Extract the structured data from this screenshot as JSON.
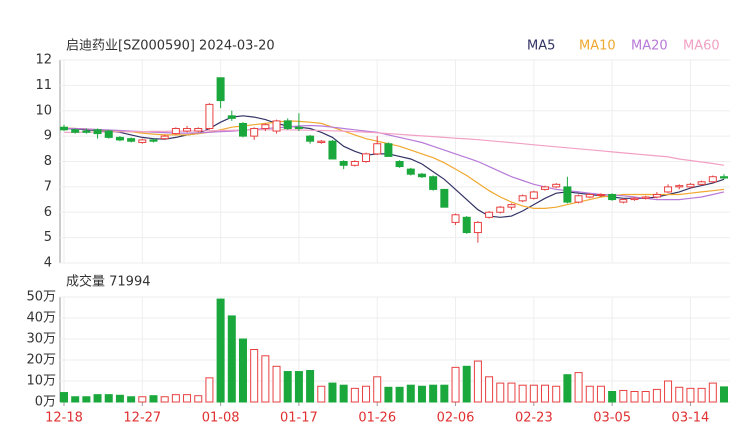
{
  "chart_data": {
    "type": "candlestick",
    "title": "启迪药业[SZ000590] 2024-03-20",
    "volume_title": "成交量 71994",
    "categories": [
      "12-18",
      null,
      null,
      null,
      null,
      null,
      null,
      "12-27",
      null,
      null,
      null,
      null,
      null,
      null,
      "01-08",
      null,
      null,
      null,
      null,
      null,
      null,
      "01-17",
      null,
      null,
      null,
      null,
      null,
      null,
      "01-26",
      null,
      null,
      null,
      null,
      null,
      null,
      "02-06",
      null,
      null,
      null,
      null,
      null,
      null,
      "02-23",
      null,
      null,
      null,
      null,
      null,
      null,
      "03-05",
      null,
      null,
      null,
      null,
      null,
      null,
      "03-14",
      null,
      null,
      null
    ],
    "open": [
      9.35,
      9.25,
      9.2,
      9.25,
      9.2,
      8.95,
      8.9,
      8.75,
      8.85,
      8.9,
      9.1,
      9.2,
      9.2,
      9.3,
      11.3,
      9.8,
      9.5,
      9.0,
      9.3,
      9.2,
      9.6,
      9.35,
      9.0,
      8.75,
      8.8,
      8.0,
      7.85,
      8.0,
      8.3,
      8.7,
      8.0,
      7.7,
      7.5,
      7.4,
      6.9,
      5.6,
      5.8,
      5.2,
      5.8,
      6.0,
      6.2,
      6.45,
      6.55,
      6.9,
      7.0,
      7.0,
      6.4,
      6.6,
      6.7,
      6.7,
      6.4,
      6.5,
      6.55,
      6.6,
      6.8,
      7.0,
      7.0,
      7.1,
      7.2,
      7.4
    ],
    "high": [
      9.45,
      9.3,
      9.3,
      9.3,
      9.25,
      9.0,
      8.95,
      8.9,
      8.9,
      9.05,
      9.35,
      9.4,
      9.35,
      10.3,
      11.3,
      10.0,
      9.55,
      9.35,
      9.5,
      9.65,
      9.7,
      9.9,
      9.05,
      8.85,
      8.85,
      8.05,
      8.05,
      8.35,
      9.0,
      8.75,
      8.05,
      7.75,
      7.55,
      7.45,
      6.9,
      5.95,
      5.85,
      5.65,
      6.05,
      6.25,
      6.35,
      6.7,
      6.85,
      7.05,
      7.15,
      7.4,
      6.7,
      6.75,
      6.75,
      6.75,
      6.55,
      6.6,
      6.65,
      6.8,
      7.1,
      7.1,
      7.15,
      7.25,
      7.45,
      7.5
    ],
    "low": [
      9.2,
      9.1,
      9.1,
      8.9,
      8.9,
      8.8,
      8.75,
      8.7,
      8.75,
      8.85,
      9.05,
      9.15,
      9.15,
      9.25,
      10.1,
      9.6,
      8.95,
      8.85,
      9.2,
      9.1,
      9.25,
      9.2,
      8.7,
      8.7,
      8.1,
      7.7,
      7.8,
      7.95,
      8.25,
      8.2,
      7.75,
      7.45,
      7.35,
      6.85,
      6.2,
      5.5,
      5.15,
      4.8,
      5.75,
      5.95,
      6.1,
      6.4,
      6.5,
      6.85,
      6.95,
      6.35,
      6.35,
      6.55,
      6.6,
      6.45,
      6.35,
      6.45,
      6.5,
      6.55,
      6.75,
      6.9,
      6.95,
      7.05,
      7.15,
      7.3
    ],
    "close": [
      9.25,
      9.15,
      9.15,
      9.1,
      8.95,
      8.85,
      8.8,
      8.85,
      8.8,
      9.0,
      9.3,
      9.3,
      9.3,
      10.25,
      10.4,
      9.7,
      9.0,
      9.3,
      9.45,
      9.6,
      9.3,
      9.3,
      8.8,
      8.8,
      8.1,
      7.85,
      8.0,
      8.3,
      8.7,
      8.2,
      7.8,
      7.5,
      7.4,
      6.9,
      6.2,
      5.9,
      5.2,
      5.6,
      6.0,
      6.2,
      6.3,
      6.65,
      6.8,
      7.0,
      7.1,
      6.4,
      6.65,
      6.7,
      6.7,
      6.5,
      6.5,
      6.55,
      6.6,
      6.7,
      7.0,
      7.05,
      7.1,
      7.2,
      7.4,
      7.35
    ],
    "volume": [
      4.5,
      2.5,
      2.5,
      3.5,
      3.5,
      3.2,
      2.5,
      2.5,
      3,
      2.5,
      3.5,
      3.5,
      3,
      11.5,
      49,
      41,
      30,
      25,
      22,
      17,
      14.5,
      14.5,
      15,
      7.5,
      9,
      8,
      6.5,
      7.5,
      12,
      7,
      7,
      8,
      7.5,
      8,
      8,
      16.5,
      17,
      19.5,
      12,
      9,
      9,
      8,
      8,
      8,
      7.5,
      13,
      14,
      7.5,
      7.5,
      5,
      5.5,
      5,
      5,
      6,
      10,
      7,
      6.5,
      6.5,
      9,
      7.1994
    ],
    "up_color": "#e84040",
    "down_color": "#1aa83c",
    "series": [
      {
        "name": "MA5",
        "color": "#333366",
        "values": [
          9.3,
          9.28,
          9.25,
          9.22,
          9.2,
          9.15,
          9.05,
          8.95,
          8.9,
          8.88,
          8.95,
          9.05,
          9.1,
          9.3,
          9.55,
          9.75,
          9.8,
          9.75,
          9.65,
          9.5,
          9.4,
          9.35,
          9.3,
          9.15,
          8.95,
          8.6,
          8.4,
          8.25,
          8.3,
          8.3,
          8.2,
          8.1,
          7.9,
          7.6,
          7.3,
          6.9,
          6.5,
          6.1,
          5.85,
          5.8,
          5.85,
          6.05,
          6.3,
          6.55,
          6.75,
          6.8,
          6.75,
          6.7,
          6.65,
          6.6,
          6.55,
          6.55,
          6.55,
          6.6,
          6.7,
          6.8,
          6.95,
          7.05,
          7.15,
          7.3
        ]
      },
      {
        "name": "MA10",
        "color": "#f0a830",
        "values": [
          9.32,
          9.3,
          9.28,
          9.25,
          9.22,
          9.2,
          9.17,
          9.12,
          9.08,
          9.05,
          9.05,
          9.05,
          9.1,
          9.15,
          9.25,
          9.35,
          9.4,
          9.45,
          9.5,
          9.55,
          9.6,
          9.58,
          9.55,
          9.5,
          9.35,
          9.2,
          9.05,
          8.9,
          8.8,
          8.7,
          8.6,
          8.45,
          8.3,
          8.15,
          7.95,
          7.7,
          7.45,
          7.15,
          6.85,
          6.6,
          6.4,
          6.25,
          6.15,
          6.15,
          6.2,
          6.3,
          6.4,
          6.5,
          6.6,
          6.65,
          6.7,
          6.7,
          6.7,
          6.7,
          6.7,
          6.7,
          6.75,
          6.8,
          6.85,
          6.9
        ]
      },
      {
        "name": "MA20",
        "color": "#b87ad8",
        "values": [
          9.3,
          9.3,
          9.28,
          9.26,
          9.24,
          9.22,
          9.2,
          9.18,
          9.16,
          9.14,
          9.12,
          9.12,
          9.13,
          9.15,
          9.18,
          9.2,
          9.23,
          9.26,
          9.3,
          9.33,
          9.36,
          9.4,
          9.42,
          9.4,
          9.35,
          9.3,
          9.25,
          9.2,
          9.15,
          9.05,
          8.95,
          8.85,
          8.75,
          8.6,
          8.45,
          8.3,
          8.15,
          8.0,
          7.8,
          7.6,
          7.4,
          7.25,
          7.1,
          7.0,
          6.9,
          6.85,
          6.8,
          6.75,
          6.7,
          6.68,
          6.65,
          6.6,
          6.55,
          6.5,
          6.5,
          6.5,
          6.55,
          6.6,
          6.7,
          6.8
        ]
      },
      {
        "name": "MA60",
        "color": "#f2a0c4",
        "values": [
          9.15,
          9.15,
          9.16,
          9.16,
          9.17,
          9.17,
          9.18,
          9.18,
          9.19,
          9.19,
          9.2,
          9.2,
          9.21,
          9.21,
          9.22,
          9.23,
          9.24,
          9.25,
          9.25,
          9.25,
          9.25,
          9.24,
          9.23,
          9.22,
          9.21,
          9.2,
          9.18,
          9.16,
          9.13,
          9.1,
          9.07,
          9.04,
          9.01,
          8.98,
          8.95,
          8.92,
          8.89,
          8.86,
          8.82,
          8.78,
          8.74,
          8.7,
          8.66,
          8.62,
          8.58,
          8.54,
          8.5,
          8.46,
          8.42,
          8.38,
          8.34,
          8.3,
          8.26,
          8.22,
          8.18,
          8.1,
          8.04,
          7.98,
          7.92,
          7.85
        ]
      }
    ],
    "ylim": [
      4,
      12
    ],
    "yticks": [
      4,
      5,
      6,
      7,
      8,
      9,
      10,
      11,
      12
    ],
    "vlim": [
      0,
      50
    ],
    "vticks": [
      {
        "value": 0,
        "label": "0万"
      },
      {
        "value": 10,
        "label": "10万"
      },
      {
        "value": 20,
        "label": "20万"
      },
      {
        "value": 30,
        "label": "30万"
      },
      {
        "value": 40,
        "label": "40万"
      },
      {
        "value": 50,
        "label": "50万"
      }
    ],
    "grid": true
  }
}
